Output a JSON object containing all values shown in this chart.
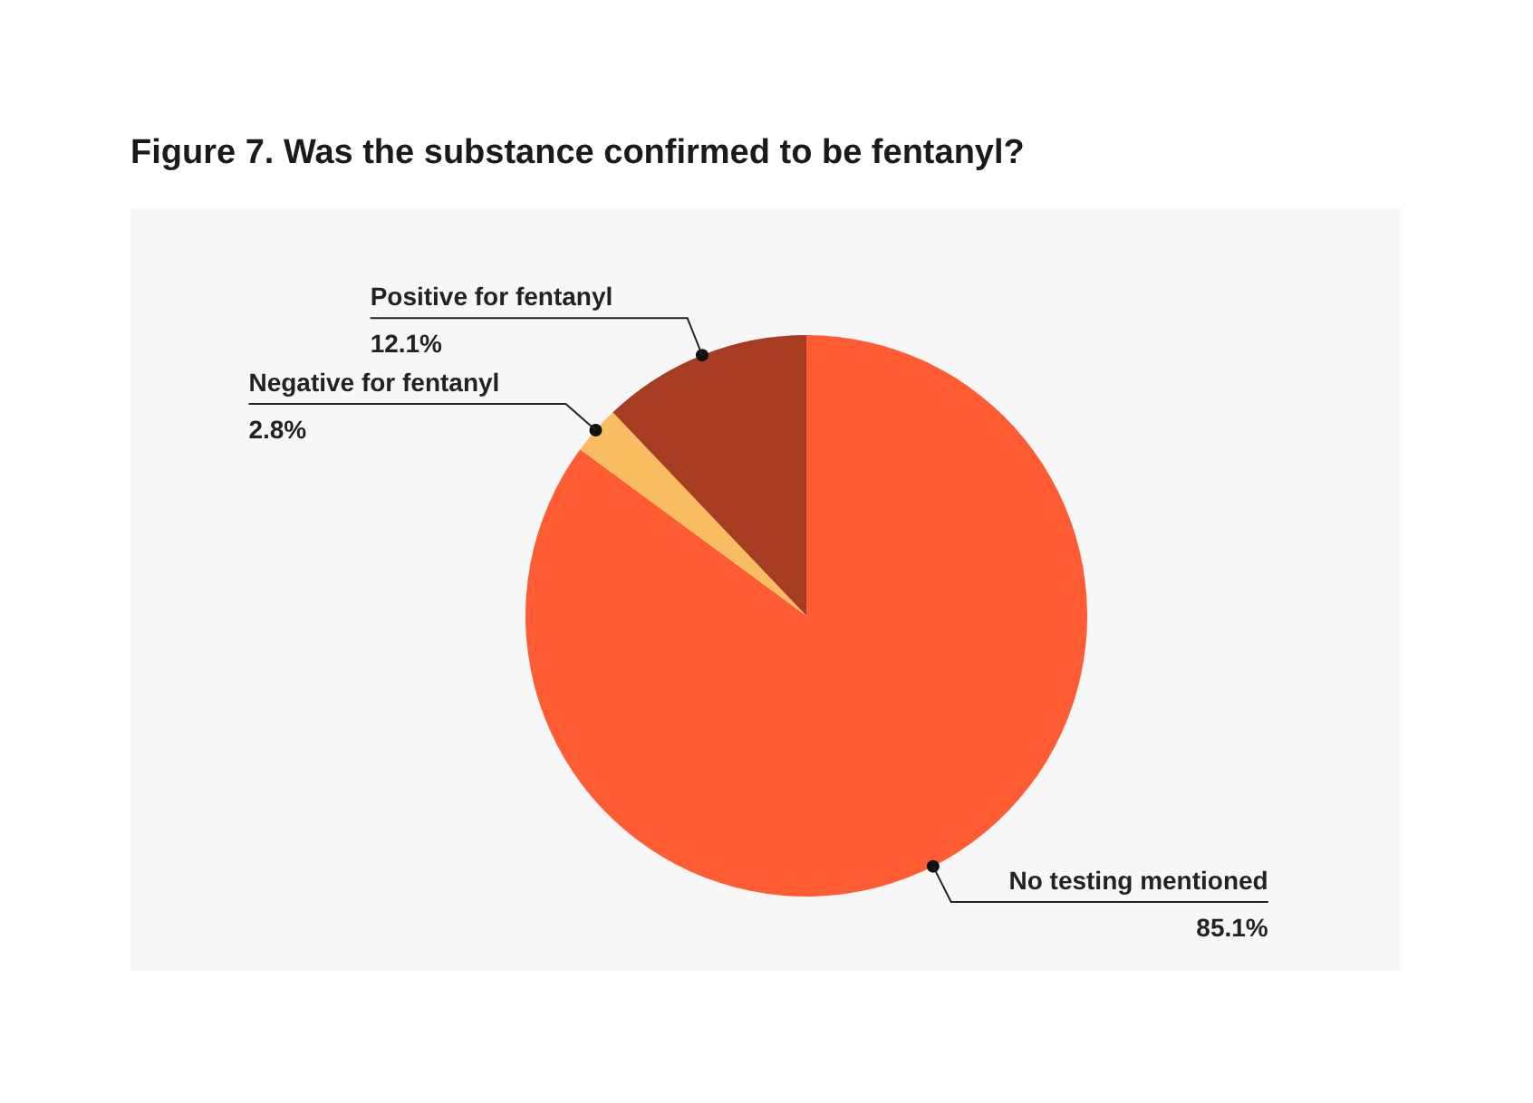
{
  "chart_data": {
    "type": "pie",
    "title": "Figure 7. Was the substance confirmed to be fentanyl?",
    "categories": [
      "No testing mentioned",
      "Negative for fentanyl",
      "Positive for fentanyl"
    ],
    "values": [
      85.1,
      2.8,
      12.1
    ],
    "colors": [
      "#ff5c33",
      "#f8bd60",
      "#a83c23"
    ],
    "value_labels": [
      "85.1%",
      "2.8%",
      "12.1%"
    ]
  }
}
